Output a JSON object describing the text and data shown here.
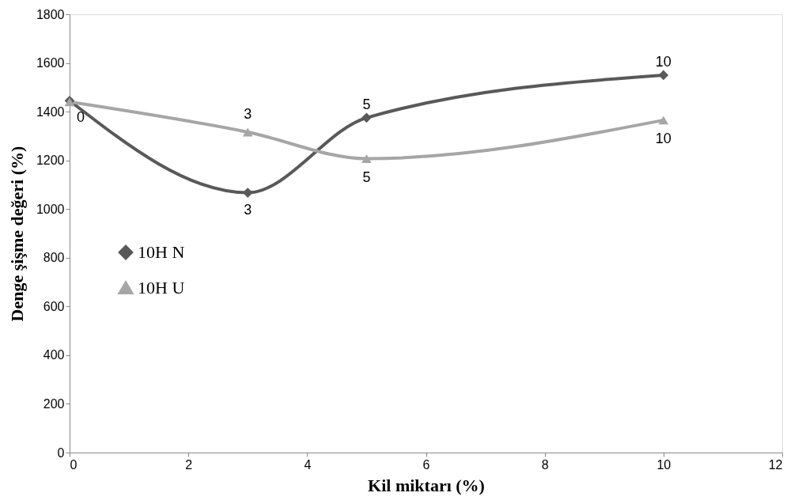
{
  "chart_data": {
    "type": "line",
    "xlabel": "Kil miktarı (%)",
    "ylabel": "Denge şişme değeri (%)",
    "x": [
      0,
      3,
      5,
      10
    ],
    "series": [
      {
        "name": "10H N",
        "color": "#595959",
        "marker": "diamond",
        "values": [
          1445,
          1067,
          1375,
          1550
        ]
      },
      {
        "name": "10H U",
        "color": "#a6a6a6",
        "marker": "triangle",
        "values": [
          1440,
          1316,
          1207,
          1365
        ]
      }
    ],
    "annotations": [
      {
        "text": "0",
        "x": 0,
        "y": 1445
      },
      {
        "text": "3",
        "x": 3,
        "y": 1067
      },
      {
        "text": "5",
        "x": 5,
        "y": 1375
      },
      {
        "text": "10",
        "x": 10,
        "y": 1550
      },
      {
        "text": "3",
        "x": 3,
        "y": 1316
      },
      {
        "text": "5",
        "x": 5,
        "y": 1207
      },
      {
        "text": "10",
        "x": 10,
        "y": 1365
      }
    ],
    "xlim": [
      0,
      12
    ],
    "xticks": [
      0,
      2,
      4,
      6,
      8,
      10,
      12
    ],
    "ylim": [
      0,
      1800
    ],
    "yticks": [
      0,
      200,
      400,
      600,
      800,
      1000,
      1200,
      1400,
      1600,
      1800
    ],
    "grid": false,
    "legend": "left",
    "line_style": "solid"
  }
}
